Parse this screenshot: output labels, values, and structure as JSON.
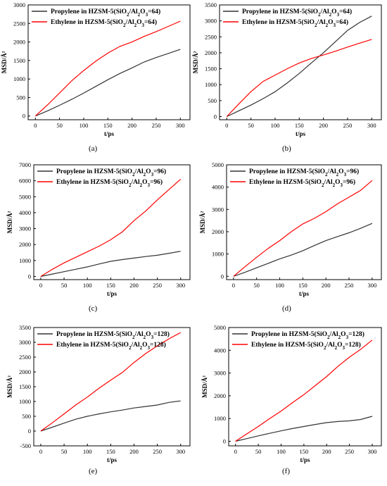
{
  "figure": {
    "panel_labels": [
      "(a)",
      "(b)",
      "(c)",
      "(d)",
      "(e)",
      "(f)"
    ]
  },
  "chart_data": [
    {
      "type": "line",
      "panel": "(a)",
      "xlabel": "t/ps",
      "ylabel": "MSD/Å²",
      "xlim": [
        -15,
        320
      ],
      "ylim": [
        -100,
        3000
      ],
      "xticks": [
        0,
        50,
        100,
        150,
        200,
        250,
        300
      ],
      "yticks": [
        0,
        500,
        1000,
        1500,
        2000,
        2500,
        3000
      ],
      "legend": "top-left",
      "series": [
        {
          "name": "Propylene in HZSM-5(SiO2/Al2O3=64)",
          "color": "#333333",
          "x": [
            0,
            25,
            50,
            75,
            100,
            125,
            150,
            175,
            200,
            225,
            250,
            275,
            300
          ],
          "y": [
            0,
            140,
            290,
            450,
            620,
            800,
            980,
            1150,
            1300,
            1460,
            1580,
            1690,
            1800
          ]
        },
        {
          "name": "Ethylene in HZSM-5(SiO2/Al2O3=64)",
          "color": "#ff0000",
          "x": [
            0,
            25,
            50,
            75,
            100,
            125,
            150,
            175,
            200,
            225,
            250,
            275,
            300
          ],
          "y": [
            0,
            300,
            620,
            950,
            1230,
            1480,
            1700,
            1880,
            2000,
            2150,
            2280,
            2420,
            2560
          ]
        }
      ]
    },
    {
      "type": "line",
      "panel": "(b)",
      "xlabel": "t/ps",
      "ylabel": "MSD/Å²",
      "xlim": [
        -15,
        320
      ],
      "ylim": [
        -100,
        3500
      ],
      "xticks": [
        0,
        50,
        100,
        150,
        200,
        250,
        300
      ],
      "yticks": [
        0,
        500,
        1000,
        1500,
        2000,
        2500,
        3000,
        3500
      ],
      "legend": "top-left",
      "series": [
        {
          "name": "Propylene in HZSM-5(SiO2/Al2O3=64)",
          "color": "#333333",
          "x": [
            0,
            25,
            50,
            75,
            100,
            125,
            150,
            175,
            200,
            225,
            250,
            275,
            300
          ],
          "y": [
            0,
            180,
            360,
            560,
            780,
            1050,
            1350,
            1680,
            2000,
            2350,
            2700,
            2950,
            3150
          ]
        },
        {
          "name": "Ethylene in HZSM-5(SiO2/Al2O3=64)",
          "color": "#ff0000",
          "x": [
            0,
            25,
            50,
            75,
            100,
            125,
            150,
            175,
            200,
            225,
            250,
            275,
            300
          ],
          "y": [
            0,
            400,
            780,
            1100,
            1300,
            1500,
            1680,
            1820,
            1930,
            2050,
            2180,
            2300,
            2420
          ]
        }
      ]
    },
    {
      "type": "line",
      "panel": "(c)",
      "xlabel": "t/ps",
      "ylabel": "MSD/Å²",
      "xlim": [
        -15,
        320
      ],
      "ylim": [
        -200,
        7000
      ],
      "xticks": [
        0,
        50,
        100,
        150,
        200,
        250,
        300
      ],
      "yticks": [
        0,
        1000,
        2000,
        3000,
        4000,
        5000,
        6000,
        7000
      ],
      "legend": "top-left",
      "series": [
        {
          "name": "Propylene in HZSM-5(SiO2/Al2O3=96)",
          "color": "#333333",
          "x": [
            0,
            25,
            50,
            75,
            100,
            125,
            150,
            175,
            200,
            225,
            250,
            275,
            300
          ],
          "y": [
            0,
            150,
            300,
            450,
            600,
            780,
            950,
            1060,
            1150,
            1250,
            1330,
            1450,
            1580
          ]
        },
        {
          "name": "Ethylene in HZSM-5(SiO2/Al2O3=96)",
          "color": "#ff0000",
          "x": [
            0,
            25,
            50,
            75,
            100,
            125,
            150,
            175,
            200,
            225,
            250,
            275,
            300
          ],
          "y": [
            0,
            450,
            850,
            1200,
            1550,
            1900,
            2300,
            2800,
            3500,
            4100,
            4800,
            5450,
            6100
          ]
        }
      ]
    },
    {
      "type": "line",
      "panel": "(d)",
      "xlabel": "t/ps",
      "ylabel": "MSD/Å²",
      "xlim": [
        -15,
        320
      ],
      "ylim": [
        -150,
        5000
      ],
      "xticks": [
        0,
        50,
        100,
        150,
        200,
        250,
        300
      ],
      "yticks": [
        0,
        1000,
        2000,
        3000,
        4000,
        5000
      ],
      "legend": "top-left",
      "series": [
        {
          "name": "Propylene in HZSM-5(SiO2/Al2O3=96)",
          "color": "#333333",
          "x": [
            0,
            25,
            50,
            75,
            100,
            125,
            150,
            175,
            200,
            225,
            250,
            275,
            300
          ],
          "y": [
            0,
            180,
            380,
            580,
            780,
            950,
            1150,
            1380,
            1600,
            1780,
            1950,
            2150,
            2370
          ]
        },
        {
          "name": "Ethylene in HZSM-5(SiO2/Al2O3=96)",
          "color": "#ff0000",
          "x": [
            0,
            25,
            50,
            75,
            100,
            125,
            150,
            175,
            200,
            225,
            250,
            275,
            300
          ],
          "y": [
            0,
            430,
            850,
            1250,
            1600,
            2000,
            2350,
            2600,
            2900,
            3250,
            3550,
            3850,
            4300
          ]
        }
      ]
    },
    {
      "type": "line",
      "panel": "(e)",
      "xlabel": "t/ps",
      "ylabel": "MSD/Å²",
      "xlim": [
        -15,
        320
      ],
      "ylim": [
        -500,
        3500
      ],
      "xticks": [
        0,
        50,
        100,
        150,
        200,
        250,
        300
      ],
      "yticks": [
        -500,
        0,
        500,
        1000,
        1500,
        2000,
        2500,
        3000,
        3500
      ],
      "legend": "top-left",
      "series": [
        {
          "name": "Propylene in HZSM-5(SiO2/Al2O3=128)",
          "color": "#333333",
          "x": [
            0,
            25,
            50,
            75,
            100,
            125,
            150,
            175,
            200,
            225,
            250,
            275,
            300
          ],
          "y": [
            0,
            130,
            270,
            400,
            500,
            580,
            650,
            710,
            780,
            830,
            880,
            970,
            1020
          ]
        },
        {
          "name": "Ethylene in HZSM-5(SiO2/Al2O3=128)",
          "color": "#ff0000",
          "x": [
            0,
            25,
            50,
            75,
            100,
            125,
            150,
            175,
            200,
            225,
            250,
            275,
            300
          ],
          "y": [
            0,
            280,
            580,
            880,
            1150,
            1450,
            1720,
            1980,
            2320,
            2620,
            2880,
            3120,
            3330
          ]
        }
      ]
    },
    {
      "type": "line",
      "panel": "(f)",
      "xlabel": "t/ps",
      "ylabel": "MSD/Å²",
      "xlim": [
        -15,
        320
      ],
      "ylim": [
        -200,
        5000
      ],
      "xticks": [
        0,
        50,
        100,
        150,
        200,
        250,
        300
      ],
      "yticks": [
        0,
        1000,
        2000,
        3000,
        4000,
        5000
      ],
      "legend": "top-left",
      "series": [
        {
          "name": "Propylene in HZSM-5(SiO2/Al2O3=128)",
          "color": "#333333",
          "x": [
            0,
            25,
            50,
            75,
            100,
            125,
            150,
            175,
            200,
            225,
            250,
            275,
            300
          ],
          "y": [
            0,
            120,
            240,
            350,
            460,
            560,
            650,
            740,
            820,
            870,
            900,
            960,
            1100
          ]
        },
        {
          "name": "Ethylene in HZSM-5(SiO2/Al2O3=128)",
          "color": "#ff0000",
          "x": [
            0,
            25,
            50,
            75,
            100,
            125,
            150,
            175,
            200,
            225,
            250,
            275,
            300
          ],
          "y": [
            0,
            330,
            650,
            1000,
            1330,
            1700,
            2050,
            2450,
            2850,
            3300,
            3700,
            4050,
            4450
          ]
        }
      ]
    }
  ]
}
